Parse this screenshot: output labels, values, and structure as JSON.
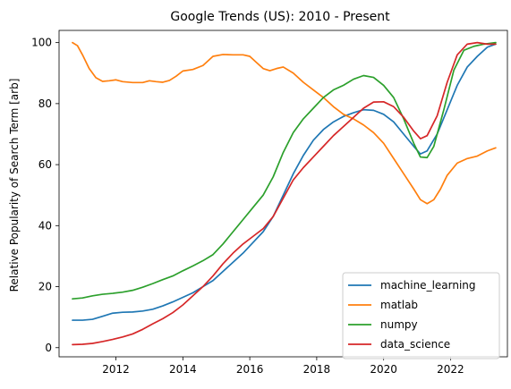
{
  "chart_data": {
    "type": "line",
    "title": "Google Trends (US): 2010 - Present",
    "xlabel": "",
    "ylabel": "Relative Popularity of Search Term [arb]",
    "xlim": [
      2010.3,
      2023.7
    ],
    "ylim": [
      -3,
      104
    ],
    "xticks": [
      2012,
      2014,
      2016,
      2018,
      2020,
      2022
    ],
    "yticks": [
      0,
      20,
      40,
      60,
      80,
      100
    ],
    "grid": false,
    "legend_position": "lower-right",
    "series": [
      {
        "name": "machine_learning",
        "color": "#1f77b4",
        "points": [
          [
            2010.7,
            9
          ],
          [
            2011.0,
            9
          ],
          [
            2011.3,
            9.3
          ],
          [
            2011.6,
            10.3
          ],
          [
            2011.9,
            11.3
          ],
          [
            2012.2,
            11.6
          ],
          [
            2012.5,
            11.7
          ],
          [
            2012.8,
            12
          ],
          [
            2013.1,
            12.6
          ],
          [
            2013.4,
            13.7
          ],
          [
            2013.7,
            15
          ],
          [
            2014.0,
            16.5
          ],
          [
            2014.3,
            18
          ],
          [
            2014.6,
            20
          ],
          [
            2014.9,
            22
          ],
          [
            2015.2,
            25
          ],
          [
            2015.5,
            28
          ],
          [
            2015.8,
            31
          ],
          [
            2016.1,
            34.5
          ],
          [
            2016.4,
            38
          ],
          [
            2016.7,
            43
          ],
          [
            2017.0,
            50
          ],
          [
            2017.3,
            57
          ],
          [
            2017.6,
            63
          ],
          [
            2017.9,
            68
          ],
          [
            2018.2,
            71.5
          ],
          [
            2018.5,
            74
          ],
          [
            2018.8,
            75.8
          ],
          [
            2019.1,
            77
          ],
          [
            2019.4,
            78
          ],
          [
            2019.7,
            77.8
          ],
          [
            2020.0,
            76.5
          ],
          [
            2020.3,
            74
          ],
          [
            2020.6,
            70
          ],
          [
            2020.9,
            66
          ],
          [
            2021.1,
            63.5
          ],
          [
            2021.3,
            64.5
          ],
          [
            2021.6,
            70
          ],
          [
            2021.9,
            78
          ],
          [
            2022.2,
            86
          ],
          [
            2022.5,
            92
          ],
          [
            2022.8,
            95.5
          ],
          [
            2023.1,
            98.5
          ],
          [
            2023.35,
            99.5
          ]
        ]
      },
      {
        "name": "matlab",
        "color": "#ff7f0e",
        "points": [
          [
            2010.7,
            100
          ],
          [
            2010.85,
            99
          ],
          [
            2011.0,
            96
          ],
          [
            2011.2,
            91.5
          ],
          [
            2011.4,
            88.5
          ],
          [
            2011.6,
            87.3
          ],
          [
            2011.8,
            87.5
          ],
          [
            2012.0,
            87.8
          ],
          [
            2012.2,
            87.2
          ],
          [
            2012.5,
            86.9
          ],
          [
            2012.8,
            86.9
          ],
          [
            2013.0,
            87.5
          ],
          [
            2013.2,
            87.2
          ],
          [
            2013.4,
            87
          ],
          [
            2013.6,
            87.6
          ],
          [
            2013.8,
            89
          ],
          [
            2014.0,
            90.7
          ],
          [
            2014.3,
            91.2
          ],
          [
            2014.6,
            92.5
          ],
          [
            2014.9,
            95.5
          ],
          [
            2015.2,
            96.1
          ],
          [
            2015.5,
            96
          ],
          [
            2015.8,
            96
          ],
          [
            2016.0,
            95.5
          ],
          [
            2016.2,
            93.5
          ],
          [
            2016.4,
            91.5
          ],
          [
            2016.6,
            90.8
          ],
          [
            2016.8,
            91.5
          ],
          [
            2017.0,
            92
          ],
          [
            2017.3,
            90
          ],
          [
            2017.6,
            87
          ],
          [
            2017.9,
            84.5
          ],
          [
            2018.2,
            82
          ],
          [
            2018.5,
            79
          ],
          [
            2018.8,
            76.5
          ],
          [
            2019.1,
            75
          ],
          [
            2019.4,
            73
          ],
          [
            2019.7,
            70.5
          ],
          [
            2020.0,
            67
          ],
          [
            2020.3,
            62
          ],
          [
            2020.6,
            57
          ],
          [
            2020.9,
            52
          ],
          [
            2021.1,
            48.5
          ],
          [
            2021.3,
            47.2
          ],
          [
            2021.5,
            48.5
          ],
          [
            2021.7,
            52
          ],
          [
            2021.9,
            56.5
          ],
          [
            2022.2,
            60.5
          ],
          [
            2022.5,
            62
          ],
          [
            2022.8,
            62.8
          ],
          [
            2023.1,
            64.5
          ],
          [
            2023.35,
            65.5
          ]
        ]
      },
      {
        "name": "numpy",
        "color": "#2ca02c",
        "points": [
          [
            2010.7,
            16
          ],
          [
            2011.0,
            16.3
          ],
          [
            2011.3,
            17
          ],
          [
            2011.6,
            17.5
          ],
          [
            2011.9,
            17.8
          ],
          [
            2012.2,
            18.2
          ],
          [
            2012.5,
            18.8
          ],
          [
            2012.8,
            19.8
          ],
          [
            2013.1,
            21
          ],
          [
            2013.4,
            22.3
          ],
          [
            2013.7,
            23.5
          ],
          [
            2014.0,
            25.2
          ],
          [
            2014.3,
            26.8
          ],
          [
            2014.6,
            28.5
          ],
          [
            2014.9,
            30.5
          ],
          [
            2015.2,
            34
          ],
          [
            2015.5,
            38
          ],
          [
            2015.8,
            42
          ],
          [
            2016.1,
            46
          ],
          [
            2016.4,
            50
          ],
          [
            2016.7,
            56
          ],
          [
            2017.0,
            64
          ],
          [
            2017.3,
            70.5
          ],
          [
            2017.6,
            75
          ],
          [
            2017.9,
            78.5
          ],
          [
            2018.2,
            82
          ],
          [
            2018.5,
            84.5
          ],
          [
            2018.8,
            86
          ],
          [
            2019.1,
            88
          ],
          [
            2019.4,
            89.2
          ],
          [
            2019.7,
            88.6
          ],
          [
            2020.0,
            86
          ],
          [
            2020.3,
            82
          ],
          [
            2020.6,
            75
          ],
          [
            2020.9,
            67
          ],
          [
            2021.1,
            62.5
          ],
          [
            2021.3,
            62.3
          ],
          [
            2021.5,
            66
          ],
          [
            2021.8,
            78
          ],
          [
            2022.1,
            91
          ],
          [
            2022.4,
            97.5
          ],
          [
            2022.7,
            98.8
          ],
          [
            2023.0,
            99.5
          ],
          [
            2023.35,
            100
          ]
        ]
      },
      {
        "name": "data_science",
        "color": "#d62728",
        "points": [
          [
            2010.7,
            1
          ],
          [
            2011.0,
            1.1
          ],
          [
            2011.3,
            1.4
          ],
          [
            2011.6,
            2
          ],
          [
            2011.9,
            2.7
          ],
          [
            2012.2,
            3.5
          ],
          [
            2012.5,
            4.5
          ],
          [
            2012.8,
            6
          ],
          [
            2013.1,
            7.8
          ],
          [
            2013.4,
            9.5
          ],
          [
            2013.7,
            11.5
          ],
          [
            2014.0,
            14
          ],
          [
            2014.3,
            17
          ],
          [
            2014.6,
            20
          ],
          [
            2014.9,
            23.5
          ],
          [
            2015.2,
            27.5
          ],
          [
            2015.5,
            31
          ],
          [
            2015.8,
            34
          ],
          [
            2016.1,
            36.5
          ],
          [
            2016.4,
            39
          ],
          [
            2016.7,
            43
          ],
          [
            2017.0,
            49
          ],
          [
            2017.3,
            55
          ],
          [
            2017.6,
            59
          ],
          [
            2017.9,
            62.5
          ],
          [
            2018.2,
            66
          ],
          [
            2018.5,
            69.5
          ],
          [
            2018.8,
            72.5
          ],
          [
            2019.1,
            75.5
          ],
          [
            2019.4,
            78.5
          ],
          [
            2019.7,
            80.5
          ],
          [
            2020.0,
            80.6
          ],
          [
            2020.3,
            79
          ],
          [
            2020.6,
            75.5
          ],
          [
            2020.9,
            71
          ],
          [
            2021.1,
            68.5
          ],
          [
            2021.3,
            69.5
          ],
          [
            2021.6,
            76
          ],
          [
            2021.9,
            87
          ],
          [
            2022.2,
            96
          ],
          [
            2022.5,
            99.5
          ],
          [
            2022.8,
            100
          ],
          [
            2023.1,
            99.5
          ],
          [
            2023.35,
            99.5
          ]
        ]
      }
    ]
  }
}
